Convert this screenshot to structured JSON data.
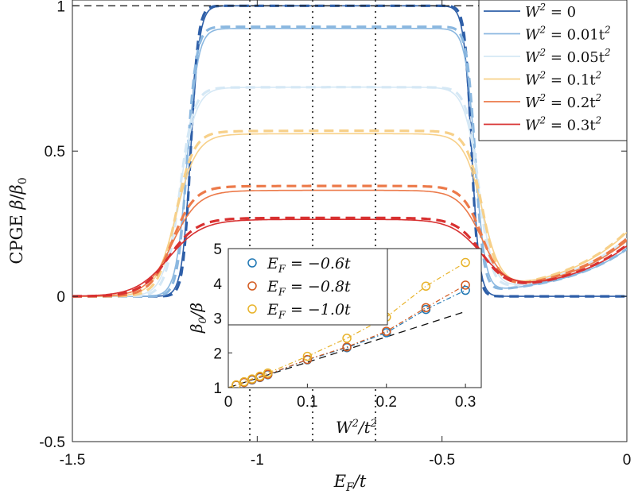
{
  "chart_data": [
    {
      "type": "line",
      "title": "",
      "xlabel_parts": [
        "E",
        "F",
        "/t"
      ],
      "ylabel_parts": [
        "CPGE ",
        "β",
        "/",
        "β",
        "0"
      ],
      "xlim": [
        -1.5,
        0
      ],
      "ylim": [
        -0.5,
        1.02
      ],
      "xticks": [
        -1.5,
        -1,
        -0.5,
        0
      ],
      "xtick_labels": [
        "-1.5",
        "-1",
        "-0.5",
        "0"
      ],
      "yticks": [
        -0.5,
        0,
        0.5,
        1
      ],
      "ytick_labels": [
        "-0.5",
        "0",
        "0.5",
        "1"
      ],
      "reference_hline": 1,
      "reference_vlines": [
        -1.02,
        -0.85,
        -0.68
      ],
      "legend_position": "top-right",
      "series": [
        {
          "name": "W2=0",
          "label_parts": [
            "W",
            "2",
            " = 0"
          ],
          "color": "#2e5fa8",
          "plateau_solid": 1.0,
          "plateau_dashed": 1.0,
          "edge_left": -1.18,
          "edge_right": -0.42,
          "width": 0.012,
          "drop_right": 0.93,
          "flat": 0.0
        },
        {
          "name": "W2=0.01t2",
          "label_parts": [
            "W",
            "2",
            " = 0.01t",
            "2"
          ],
          "color": "#8bb8e0",
          "plateau_solid": 0.922,
          "plateau_dashed": 0.928,
          "edge_left": -1.19,
          "edge_right": -0.41,
          "width": 0.015,
          "drop_right": 0.94,
          "flat": 0.0
        },
        {
          "name": "W2=0.05t2",
          "label_parts": [
            "W",
            "2",
            " = 0.05t",
            "2"
          ],
          "color": "#d5e8f5",
          "plateau_solid": 0.72,
          "plateau_dashed": 0.72,
          "edge_left": -1.21,
          "edge_right": -0.4,
          "width": 0.022,
          "drop_right": 0.9,
          "flat": 0.01
        },
        {
          "name": "W2=0.1t2",
          "label_parts": [
            "W",
            "2",
            " = 0.1t",
            "2"
          ],
          "color": "#f7d089",
          "plateau_solid": 0.56,
          "plateau_dashed": 0.57,
          "edge_left": -1.22,
          "edge_right": -0.39,
          "width": 0.028,
          "drop_right": 0.85,
          "flat": 0.02
        },
        {
          "name": "W2=0.2t2",
          "label_parts": [
            "W",
            "2",
            " = 0.2t",
            "2"
          ],
          "color": "#ec7a4a",
          "plateau_solid": 0.365,
          "plateau_dashed": 0.38,
          "edge_left": -1.23,
          "edge_right": -0.39,
          "width": 0.035,
          "drop_right": 0.8,
          "flat": 0.02
        },
        {
          "name": "W2=0.3t2",
          "label_parts": [
            "W",
            "2",
            " = 0.3t",
            "2"
          ],
          "color": "#d83131",
          "plateau_solid": 0.265,
          "plateau_dashed": 0.27,
          "edge_left": -1.24,
          "edge_right": -0.39,
          "width": 0.045,
          "drop_right": 0.75,
          "flat": 0.02
        }
      ]
    },
    {
      "type": "scatter",
      "xlabel_parts": [
        "W",
        "2",
        "/t",
        "2"
      ],
      "ylabel_parts": [
        "β",
        "0",
        "/",
        "β"
      ],
      "xlim": [
        0,
        0.32
      ],
      "ylim": [
        1,
        5
      ],
      "xticks": [
        0,
        0.1,
        0.2,
        0.3
      ],
      "xtick_labels": [
        "0",
        "0.1",
        "0.2",
        "0.3"
      ],
      "yticks": [
        1,
        2,
        3,
        4,
        5
      ],
      "ytick_labels": [
        "1",
        "2",
        "3",
        "4",
        "5"
      ],
      "legend_position": "top-left",
      "reference_line": {
        "slope": 7.3,
        "intercept": 1.0,
        "style": "dashed",
        "color": "#111111"
      },
      "x": [
        0.01,
        0.02,
        0.03,
        0.04,
        0.05,
        0.1,
        0.15,
        0.2,
        0.25,
        0.3
      ],
      "series": [
        {
          "name": "EF=-0.6t",
          "label_parts": [
            "E",
            "F",
            " = −0.6t"
          ],
          "color": "#1f77b4",
          "values": [
            1.07,
            1.15,
            1.22,
            1.29,
            1.37,
            1.8,
            2.15,
            2.58,
            3.25,
            3.8
          ]
        },
        {
          "name": "EF=-0.8t",
          "label_parts": [
            "E",
            "F",
            " = −0.8t"
          ],
          "color": "#d35a1f",
          "values": [
            1.07,
            1.15,
            1.23,
            1.3,
            1.38,
            1.81,
            2.17,
            2.62,
            3.3,
            3.95
          ]
        },
        {
          "name": "EF=-1.0t",
          "label_parts": [
            "E",
            "F",
            " = −1.0t"
          ],
          "color": "#e8b32a",
          "values": [
            1.08,
            1.17,
            1.25,
            1.33,
            1.42,
            1.9,
            2.42,
            3.03,
            3.92,
            4.6
          ]
        }
      ]
    }
  ]
}
